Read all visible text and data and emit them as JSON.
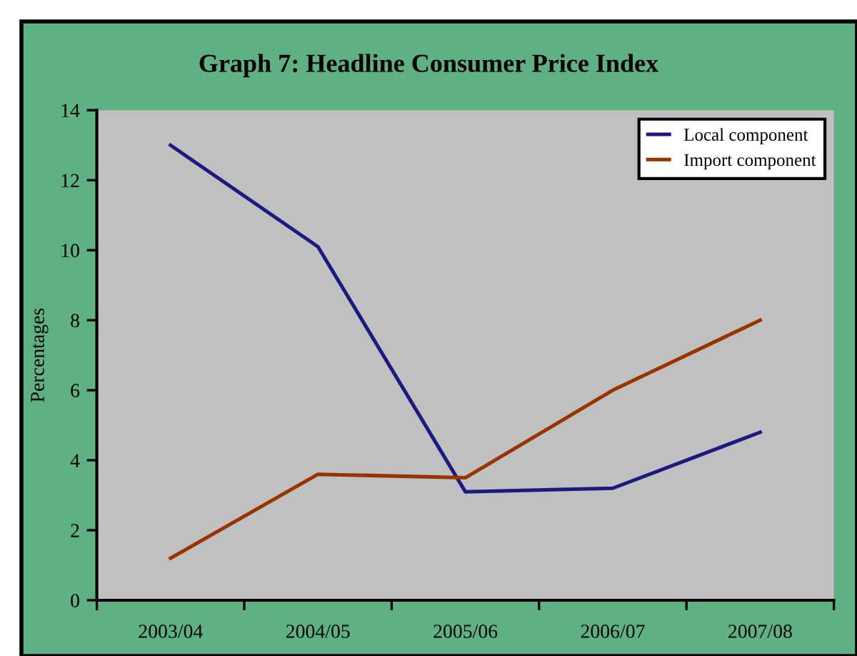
{
  "chart_data": {
    "type": "line",
    "title": "Graph 7: Headline Consumer Price Index",
    "ylabel": "Percentages",
    "categories": [
      "2003/04",
      "2004/05",
      "2005/06",
      "2006/07",
      "2007/08"
    ],
    "series": [
      {
        "name": "Local component",
        "color": "#1a1a80",
        "values": [
          13.0,
          10.1,
          3.1,
          3.2,
          4.8
        ]
      },
      {
        "name": "Import component",
        "color": "#993300",
        "values": [
          1.2,
          3.6,
          3.5,
          6.0,
          8.0
        ]
      }
    ],
    "ylim": [
      0,
      14
    ],
    "yticks": [
      0,
      2,
      4,
      6,
      8,
      10,
      12,
      14
    ],
    "grid": false,
    "legend": "top right",
    "marker": "none",
    "line_style": "solid"
  }
}
